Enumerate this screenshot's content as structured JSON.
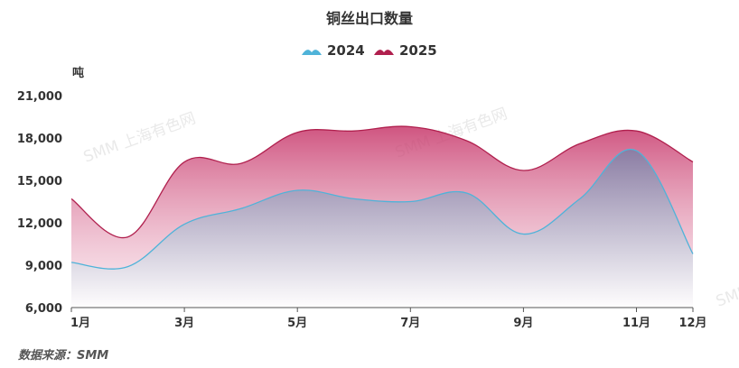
{
  "colors": {
    "series_2024": "#4fb3d9",
    "series_2025": "#b0204e"
  },
  "watermark": "SMM 上海有色网",
  "source_note": "数据来源：SMM",
  "chart_data": {
    "type": "area",
    "title": "铜丝出口数量",
    "ylabel": "吨",
    "xlabel": "",
    "legend_position": "top-center",
    "grid": false,
    "ylim": [
      6000,
      21000
    ],
    "yticks": [
      "6,000",
      "9,000",
      "12,000",
      "15,000",
      "18,000",
      "21,000"
    ],
    "ytick_values": [
      6000,
      9000,
      12000,
      15000,
      18000,
      21000
    ],
    "categories": [
      "1月",
      "2月",
      "3月",
      "4月",
      "5月",
      "6月",
      "7月",
      "8月",
      "9月",
      "10月",
      "11月",
      "12月"
    ],
    "xtick_labels": [
      "1月",
      "3月",
      "5月",
      "7月",
      "9月",
      "11月",
      "12月"
    ],
    "xtick_indices": [
      0,
      2,
      4,
      6,
      8,
      10,
      11
    ],
    "series": [
      {
        "name": "2024",
        "values": [
          9200,
          8900,
          11900,
          13000,
          14300,
          13700,
          13500,
          14100,
          11200,
          13700,
          17100,
          9800
        ]
      },
      {
        "name": "2025",
        "values": [
          13700,
          11000,
          16300,
          16200,
          18400,
          18500,
          18800,
          17800,
          15700,
          17600,
          18500,
          16300
        ]
      }
    ]
  }
}
